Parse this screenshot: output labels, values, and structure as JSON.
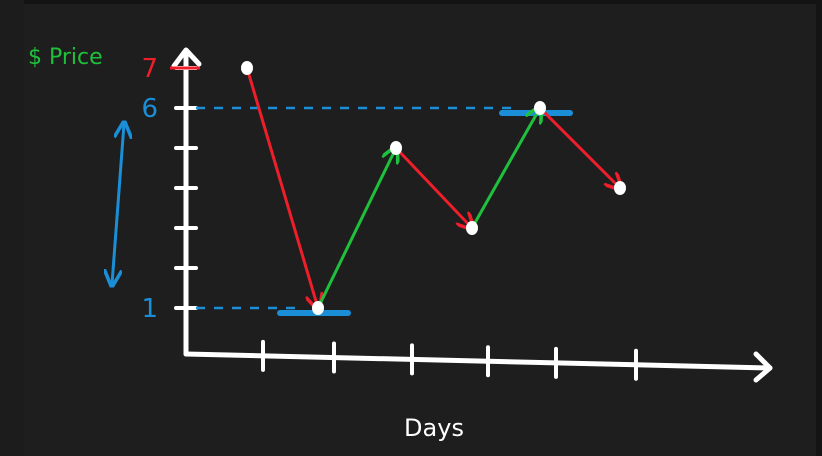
{
  "chart_data": {
    "type": "line",
    "xlabel": "Days",
    "ylabel": "$ Price",
    "x": [
      1,
      2,
      3,
      4,
      5,
      6
    ],
    "y": [
      7,
      1,
      5,
      3,
      6,
      4
    ],
    "ylim": [
      0,
      7
    ],
    "y_ticks_labeled": [
      {
        "value": 7,
        "label": "7"
      },
      {
        "value": 6,
        "label": "6"
      },
      {
        "value": 1,
        "label": "1"
      }
    ],
    "y_tick_values": [
      2,
      3,
      4,
      5
    ],
    "x_tick_count": 6,
    "segments_color_rule": {
      "down": "#ee1e2a",
      "up": "#1fc13c"
    },
    "highlights": [
      {
        "type": "min",
        "value": 1,
        "color": "#1a8fd8"
      },
      {
        "type": "max",
        "value": 6,
        "color": "#1a8fd8"
      }
    ],
    "range_arrow": {
      "from": 1,
      "to": 6,
      "color": "#1a8fd8"
    },
    "colors": {
      "axis": "#ffffff",
      "ylabel": "#1fc13c",
      "label_7": "#ee1e2a",
      "label_6": "#1a8fd8",
      "label_1": "#1a8fd8",
      "points": "#ffffff",
      "background": "#1e1e1e"
    }
  }
}
